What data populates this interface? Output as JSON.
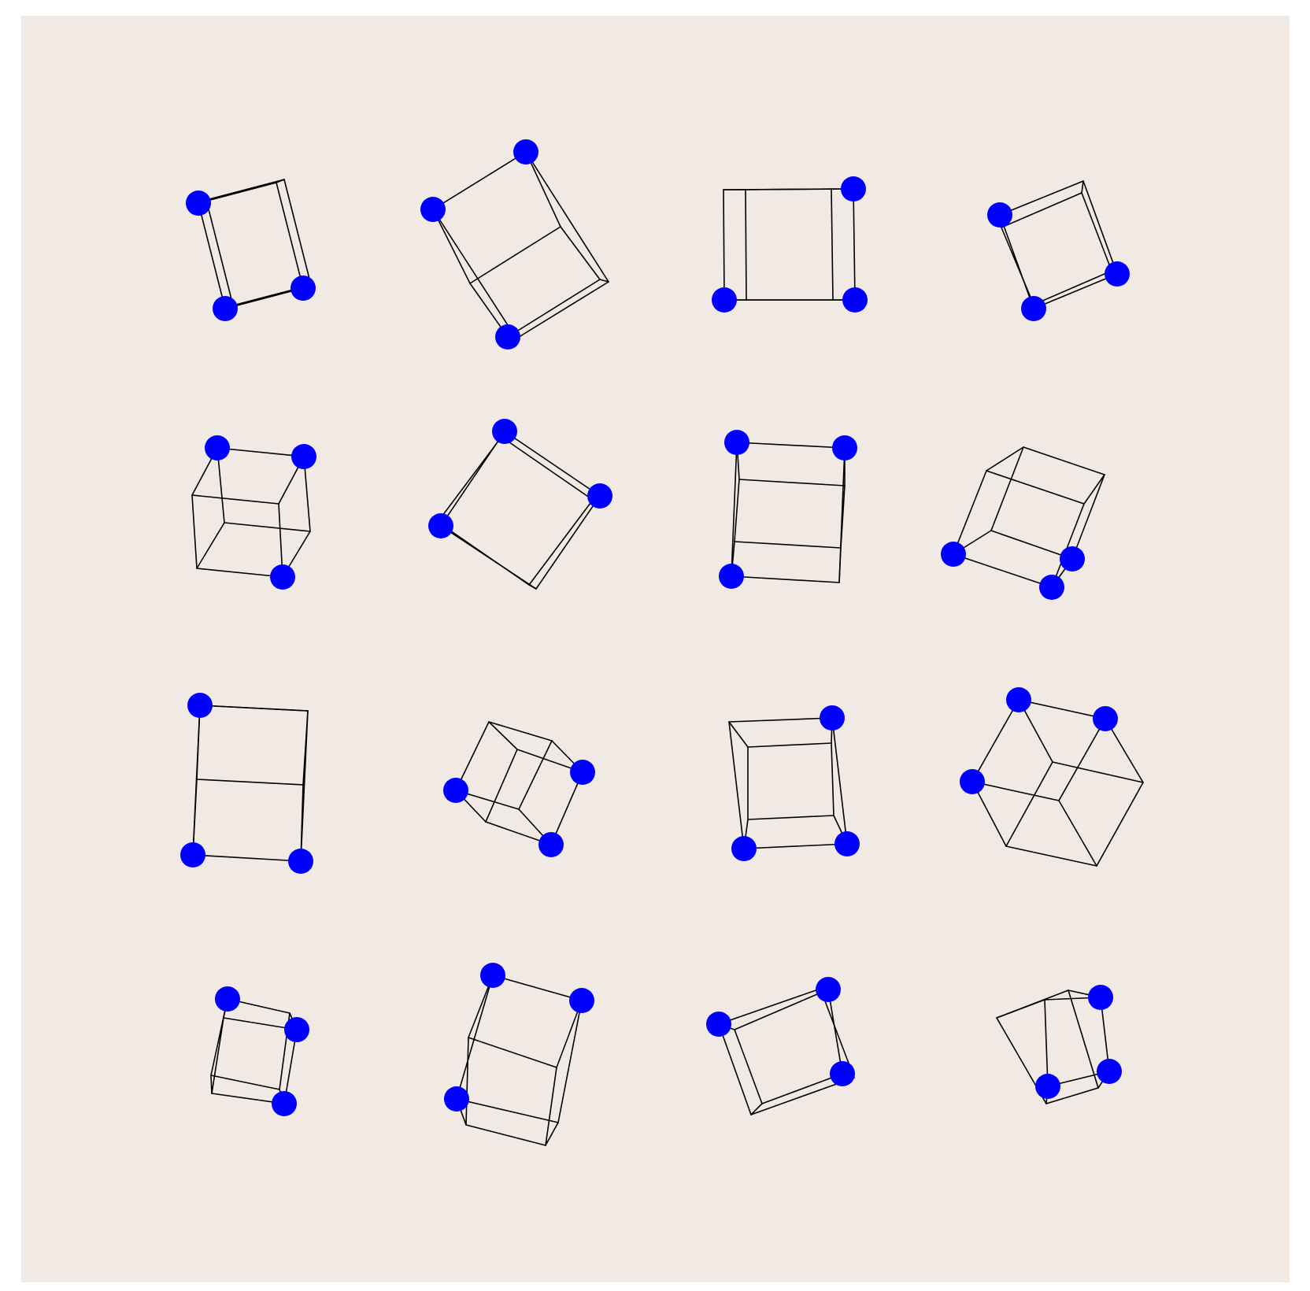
{
  "canvas": {
    "background": "#f1e9e3",
    "line_color": "#000000",
    "dot_color": "#0000ff"
  },
  "grid": {
    "rows": 4,
    "cols": 4,
    "item": "wireframe-cube",
    "marked_vertices_each": 3
  }
}
